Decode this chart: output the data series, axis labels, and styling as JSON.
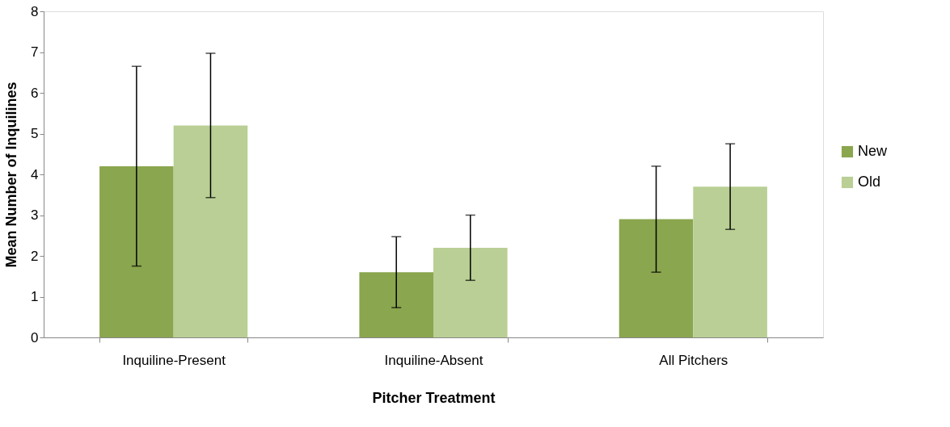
{
  "chart_data": {
    "type": "bar",
    "xlabel": "Pitcher Treatment",
    "ylabel": "Mean Number of Inquilines",
    "categories": [
      "Inquiline-Present",
      "Inquiline-Absent",
      "All Pitchers"
    ],
    "series": [
      {
        "name": "New",
        "color": "#8aa64e",
        "values": [
          4.2,
          1.6,
          2.9
        ],
        "errors": [
          [
            1.75,
            6.65
          ],
          [
            0.73,
            2.47
          ],
          [
            1.6,
            4.2
          ]
        ]
      },
      {
        "name": "Old",
        "color": "#b9cf95",
        "values": [
          5.2,
          2.2,
          3.7
        ],
        "errors": [
          [
            3.43,
            6.97
          ],
          [
            1.4,
            3.0
          ],
          [
            2.65,
            4.75
          ]
        ]
      }
    ],
    "ylim": [
      0,
      8
    ],
    "yticks": [
      0,
      1,
      2,
      3,
      4,
      5,
      6,
      7,
      8
    ],
    "grid": false,
    "legend": "right"
  }
}
